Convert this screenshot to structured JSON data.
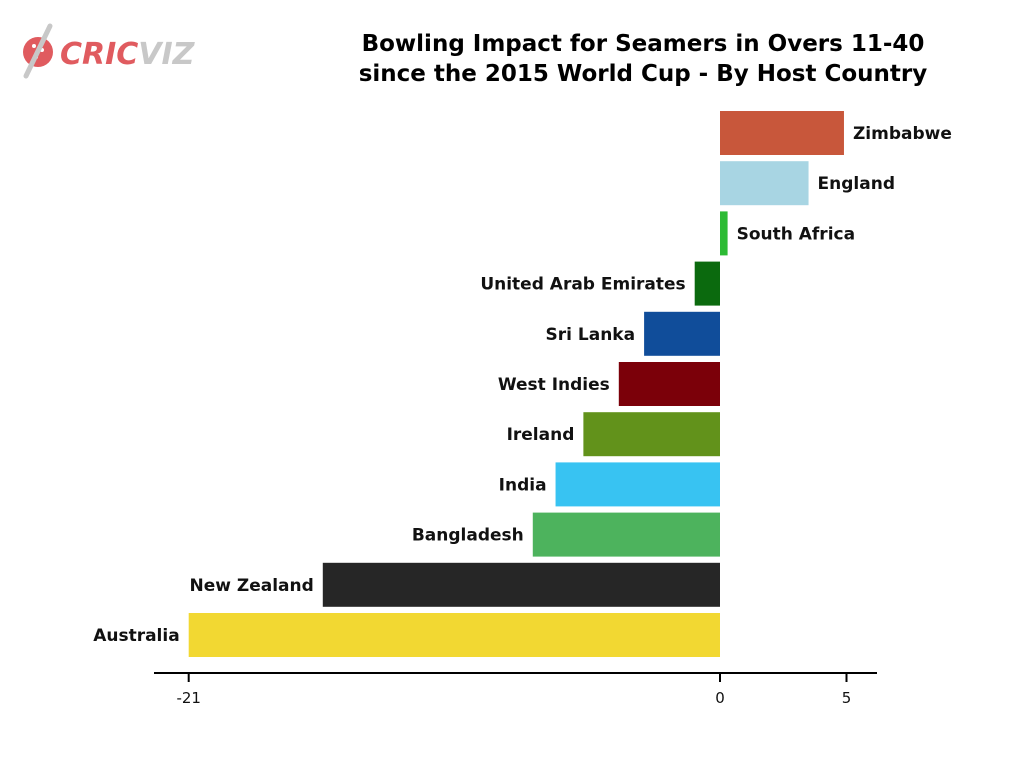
{
  "logo": {
    "part1": "CRIC",
    "part2": "VIZ",
    "icon": "cricket-ball-bat-icon",
    "color_main": "#e05b5f",
    "color_dim": "#c8c8c8"
  },
  "chart_data": {
    "type": "bar",
    "orientation": "horizontal",
    "title": [
      "Bowling Impact for Seamers in Overs 11-40",
      "since the 2015 World Cup - By Host Country"
    ],
    "xlabel": "",
    "ylabel": "",
    "xlim": [
      -21,
      5
    ],
    "xticks": [
      -21,
      0,
      5
    ],
    "grid": false,
    "legend": false,
    "categories": [
      "Zimbabwe",
      "England",
      "South Africa",
      "United Arab Emirates",
      "Sri Lanka",
      "West Indies",
      "Ireland",
      "India",
      "Bangladesh",
      "New Zealand",
      "Australia"
    ],
    "values": [
      4.9,
      3.5,
      0.3,
      -1.0,
      -3.0,
      -4.0,
      -5.4,
      -6.5,
      -7.4,
      -15.7,
      -21.0
    ],
    "colors": [
      "#c8573b",
      "#a8d5e3",
      "#2cbb34",
      "#0b6a0e",
      "#104d9a",
      "#7b0009",
      "#62921b",
      "#38c3f2",
      "#4db35d",
      "#262626",
      "#f2d832"
    ]
  }
}
